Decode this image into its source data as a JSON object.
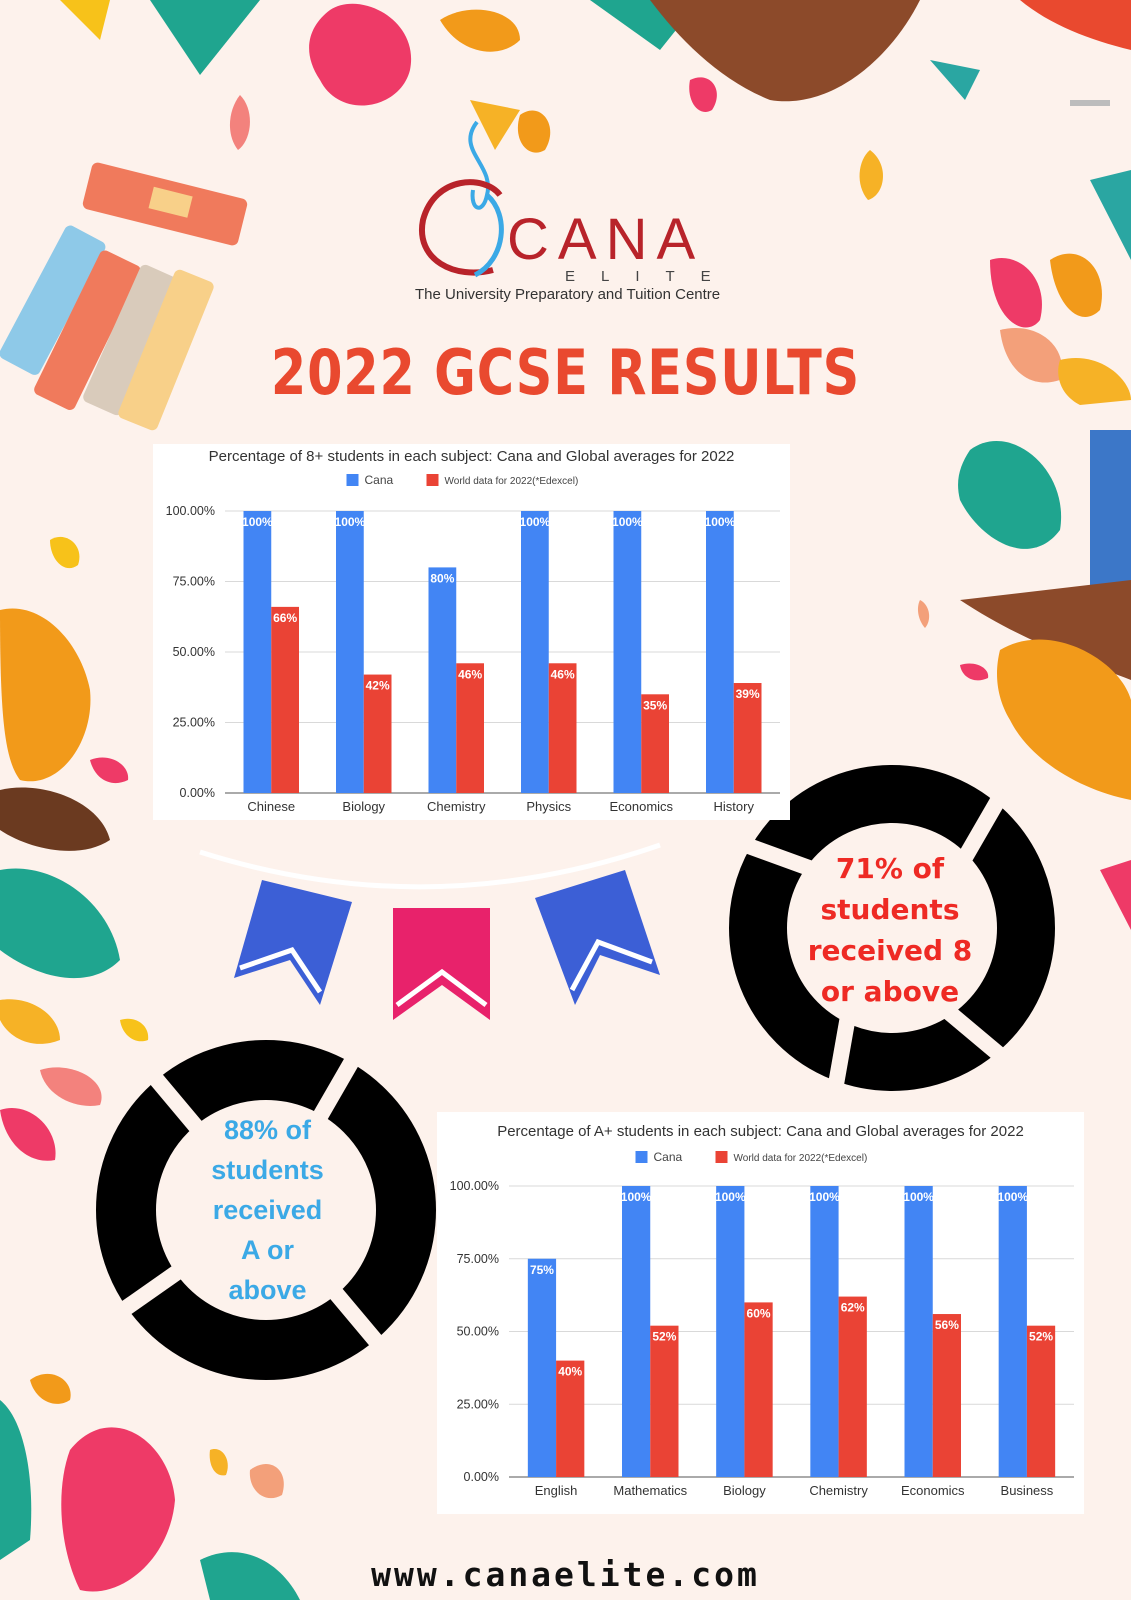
{
  "colors": {
    "background": "#fdf2ec",
    "title": "#e9492f",
    "cana_bar": "#4285f4",
    "world_bar": "#ea4335",
    "ring": "#000000",
    "ring1_text": "#ee2a24",
    "ring2_text": "#3ba9e6",
    "logo_red": "#b8232a",
    "logo_blue": "#3ba9e6"
  },
  "logo": {
    "word": "CANA",
    "sub": "ELITE",
    "tagline": "The University Preparatory and Tuition Centre"
  },
  "page_title": "2022 GCSE RESULTS",
  "chart_data": [
    {
      "type": "bar",
      "title": "Percentage of 8+ students in each subject: Cana and Global averages for 2022",
      "categories": [
        "Chinese",
        "Biology",
        "Chemistry",
        "Physics",
        "Economics",
        "History"
      ],
      "series": [
        {
          "name": "Cana",
          "values": [
            100,
            100,
            80,
            100,
            100,
            100
          ],
          "labels": [
            "100%",
            "100%",
            "80%",
            "100%",
            "100%",
            "100%"
          ]
        },
        {
          "name": "World data for 2022(*Edexcel)",
          "values": [
            66,
            42,
            46,
            46,
            35,
            39
          ],
          "labels": [
            "66%",
            "42%",
            "46%",
            "46%",
            "35%",
            "39%"
          ]
        }
      ],
      "yticks": [
        "0.00%",
        "25.00%",
        "50.00%",
        "75.00%",
        "100.00%"
      ],
      "ylim": [
        0,
        100
      ],
      "grid": true,
      "legend": "top"
    },
    {
      "type": "bar",
      "title": "Percentage of A+ students in each subject: Cana and Global averages for 2022",
      "categories": [
        "English",
        "Mathematics",
        "Biology",
        "Chemistry",
        "Economics",
        "Business"
      ],
      "series": [
        {
          "name": "Cana",
          "values": [
            75,
            100,
            100,
            100,
            100,
            100
          ],
          "labels": [
            "75%",
            "100%",
            "100%",
            "100%",
            "100%",
            "100%"
          ]
        },
        {
          "name": "World data for 2022(*Edexcel)",
          "values": [
            40,
            52,
            60,
            62,
            56,
            52
          ],
          "labels": [
            "40%",
            "52%",
            "60%",
            "62%",
            "56%",
            "52%"
          ]
        }
      ],
      "yticks": [
        "0.00%",
        "25.00%",
        "50.00%",
        "75.00%",
        "100.00%"
      ],
      "ylim": [
        0,
        100
      ],
      "grid": true,
      "legend": "top"
    }
  ],
  "stat1": {
    "line1": "71% of",
    "line2": "students",
    "line3": "received 8",
    "line4": "or above"
  },
  "stat2": {
    "line1": "88% of",
    "line2": "students",
    "line3": "received",
    "line4": "A or",
    "line5": "above"
  },
  "footer": {
    "url": "www.canaelite.com"
  }
}
